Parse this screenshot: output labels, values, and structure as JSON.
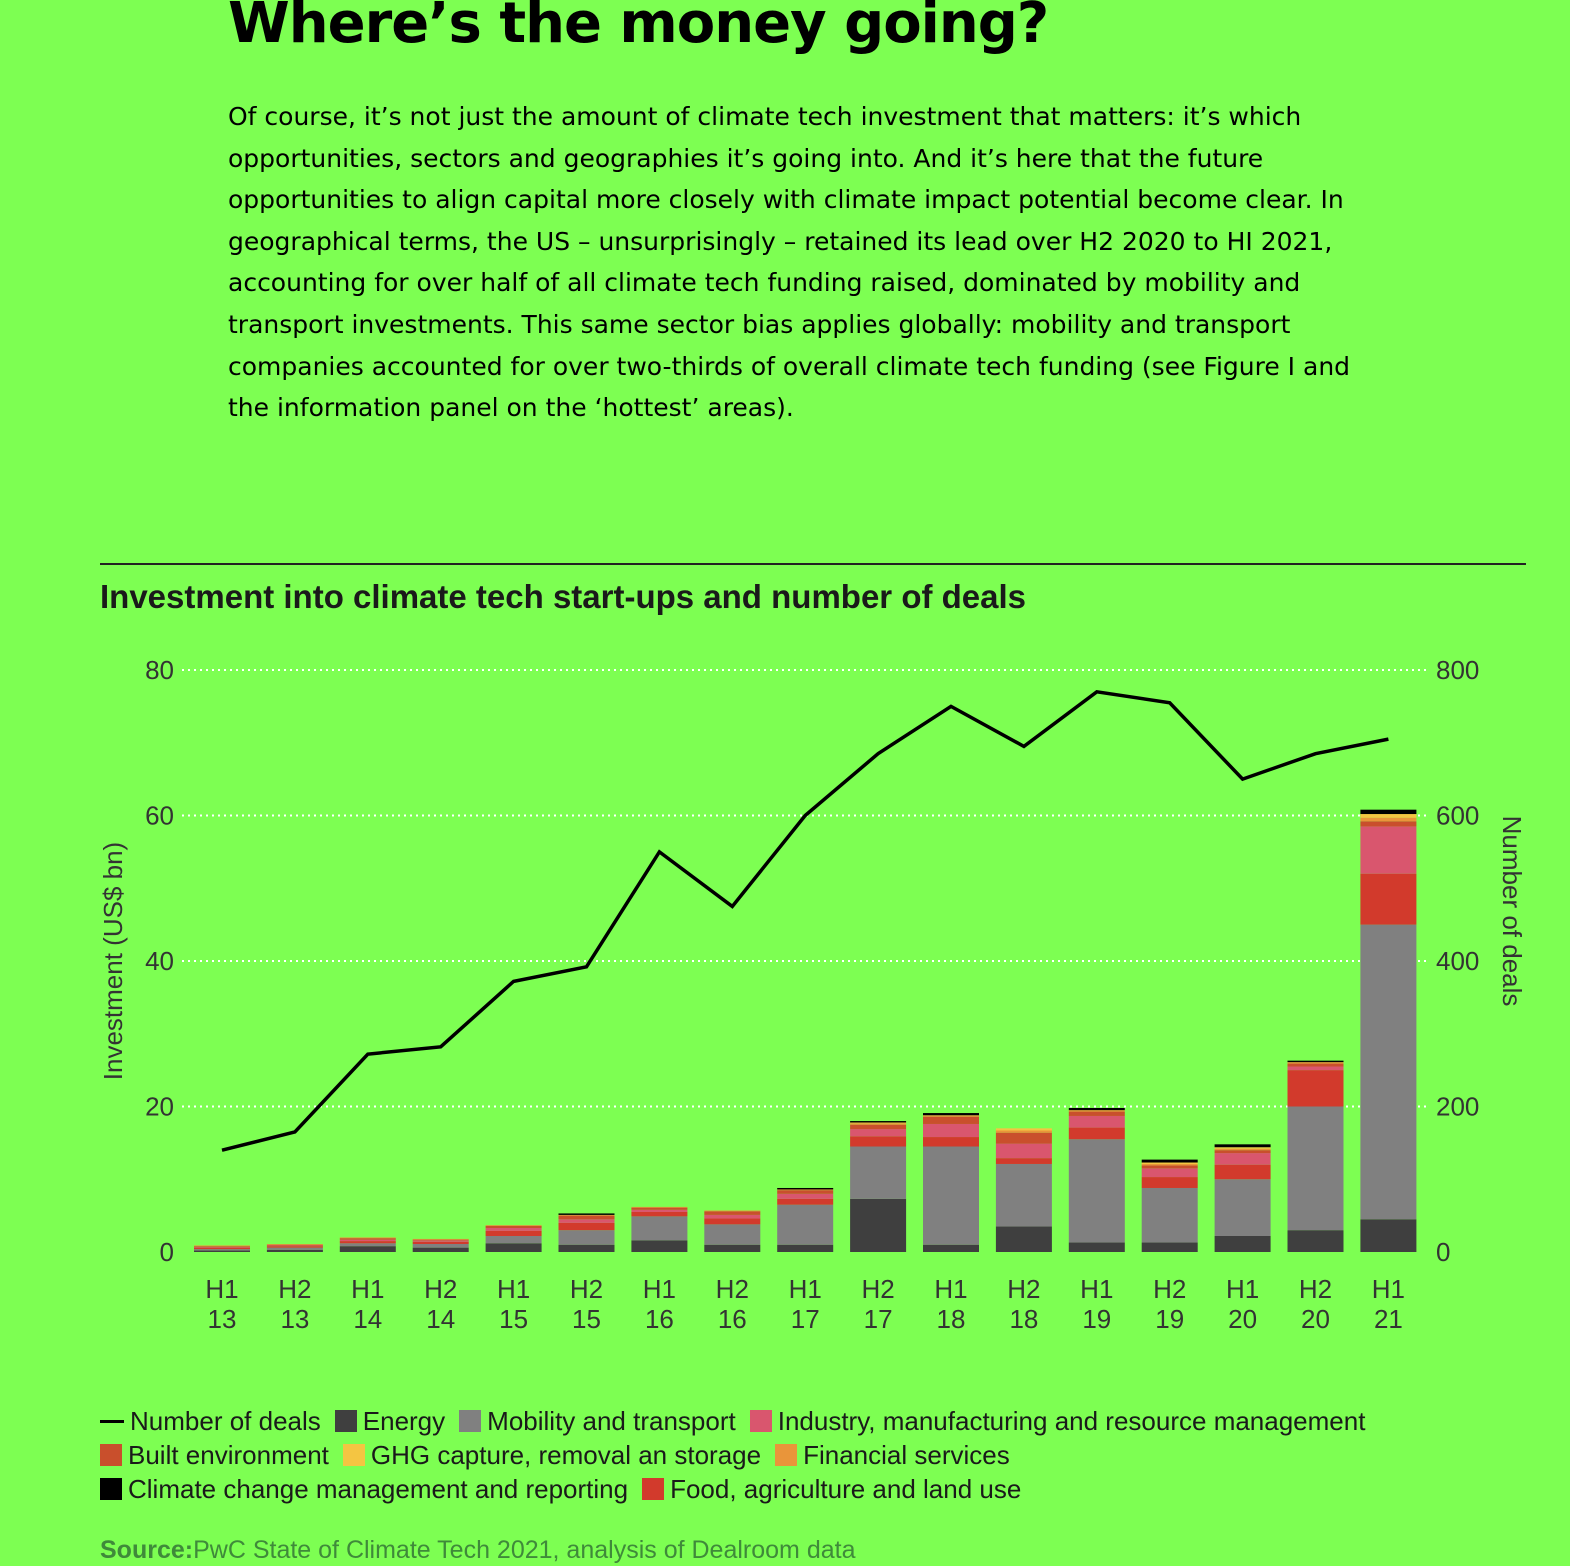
{
  "article": {
    "headline": "Where’s the money going?",
    "body": "Of course, it’s not just the amount of climate tech investment that matters: it’s which opportunities, sectors and geographies it’s going into. And it’s here that the future opportunities to align capital more closely with climate impact potential become clear. In geographical terms, the US – unsurprisingly – retained its lead over H2 2020 to HI 2021, accounting for over half of all climate tech funding raised, dominated by mobility and transport investments. This same sector bias applies globally: mobility and transport companies accounted for over two-thirds of overall climate tech funding (see Figure I and the information panel on the ‘hottest’ areas)."
  },
  "chart_data": {
    "type": "bar",
    "stacked": true,
    "title": "Investment into climate tech start-ups and number of deals",
    "ylabel": "Investment (US$ bn)",
    "y2label": "Number of deals",
    "ylim": [
      0,
      80
    ],
    "y2lim": [
      0,
      800
    ],
    "yticks": [
      0,
      20,
      40,
      60,
      80
    ],
    "y2ticks": [
      0,
      200,
      400,
      600,
      800
    ],
    "grid": "horizontal dotted",
    "legend_position": "bottom",
    "categories": [
      [
        "H1",
        "13"
      ],
      [
        "H2",
        "13"
      ],
      [
        "H1",
        "14"
      ],
      [
        "H2",
        "14"
      ],
      [
        "H1",
        "15"
      ],
      [
        "H2",
        "15"
      ],
      [
        "H1",
        "16"
      ],
      [
        "H2",
        "16"
      ],
      [
        "H1",
        "17"
      ],
      [
        "H2",
        "17"
      ],
      [
        "H1",
        "18"
      ],
      [
        "H2",
        "18"
      ],
      [
        "H1",
        "19"
      ],
      [
        "H2",
        "19"
      ],
      [
        "H1",
        "20"
      ],
      [
        "H2",
        "20"
      ],
      [
        "H1",
        "21"
      ]
    ],
    "series": [
      {
        "name": "Energy",
        "color": "#3f3f3f",
        "values": [
          0.2,
          0.3,
          0.8,
          0.6,
          1.2,
          1.0,
          1.6,
          1.0,
          1.0,
          7.3,
          1.0,
          3.5,
          1.3,
          1.3,
          2.2,
          3.0,
          4.5
        ]
      },
      {
        "name": "Mobility and transport",
        "color": "#808080",
        "values": [
          0.2,
          0.3,
          0.4,
          0.5,
          1.0,
          2.0,
          3.3,
          2.8,
          5.5,
          7.2,
          13.5,
          8.6,
          14.2,
          7.5,
          7.8,
          17.0,
          40.5
        ]
      },
      {
        "name": "Food, agriculture and land use",
        "color": "#d23a2c",
        "values": [
          0.2,
          0.2,
          0.3,
          0.3,
          0.7,
          1.0,
          0.6,
          0.8,
          0.8,
          1.4,
          1.3,
          0.8,
          1.6,
          1.5,
          2.0,
          5.0,
          7.0
        ]
      },
      {
        "name": "Industry, manufacturing and resource management",
        "color": "#d9566e",
        "values": [
          0.1,
          0.1,
          0.2,
          0.2,
          0.4,
          0.5,
          0.3,
          0.5,
          0.7,
          1.0,
          1.8,
          2.0,
          1.6,
          1.2,
          1.6,
          0.5,
          6.5
        ]
      },
      {
        "name": "Built environment",
        "color": "#c94f2c",
        "values": [
          0.1,
          0.1,
          0.2,
          0.1,
          0.3,
          0.5,
          0.3,
          0.5,
          0.5,
          0.6,
          1.0,
          1.5,
          0.6,
          0.4,
          0.4,
          0.4,
          0.7
        ]
      },
      {
        "name": "Financial services",
        "color": "#e9953a",
        "values": [
          0.1,
          0.1,
          0.1,
          0.1,
          0.1,
          0.1,
          0.1,
          0.1,
          0.1,
          0.2,
          0.2,
          0.3,
          0.2,
          0.2,
          0.2,
          0.2,
          0.5
        ]
      },
      {
        "name": "GHG capture, removal an storage",
        "color": "#f4c542",
        "values": [
          0,
          0,
          0,
          0,
          0,
          0,
          0,
          0,
          0,
          0.1,
          0,
          0.3,
          0,
          0.2,
          0.2,
          0,
          0.5
        ]
      },
      {
        "name": "Climate change management and reporting",
        "color": "#000000",
        "values": [
          0,
          0,
          0,
          0,
          0,
          0.2,
          0,
          0,
          0.2,
          0.2,
          0.3,
          0,
          0.3,
          0.4,
          0.4,
          0.2,
          0.6
        ]
      }
    ],
    "line": {
      "name": "Number of deals",
      "color": "#000000",
      "values": [
        140,
        165,
        272,
        282,
        372,
        392,
        550,
        475,
        600,
        685,
        750,
        695,
        770,
        755,
        650,
        685,
        705
      ]
    }
  },
  "legend": {
    "rows": [
      [
        {
          "label": "Number of deals",
          "color": "#000000",
          "kind": "line"
        },
        {
          "label": "Energy",
          "color": "#3f3f3f"
        },
        {
          "label": "Mobility and transport",
          "color": "#808080"
        },
        {
          "label": "Industry, manufacturing and resource management",
          "color": "#d9566e"
        }
      ],
      [
        {
          "label": "Built environment",
          "color": "#c94f2c"
        },
        {
          "label": "GHG capture, removal an storage",
          "color": "#f4c542"
        },
        {
          "label": "Financial services",
          "color": "#e9953a"
        }
      ],
      [
        {
          "label": "Climate change management and reporting",
          "color": "#000000"
        },
        {
          "label": "Food, agriculture and land use",
          "color": "#d23a2c"
        }
      ]
    ]
  },
  "source": {
    "label": "Source:",
    "text": "PwC State of Climate Tech 2021, analysis of Dealroom data"
  }
}
